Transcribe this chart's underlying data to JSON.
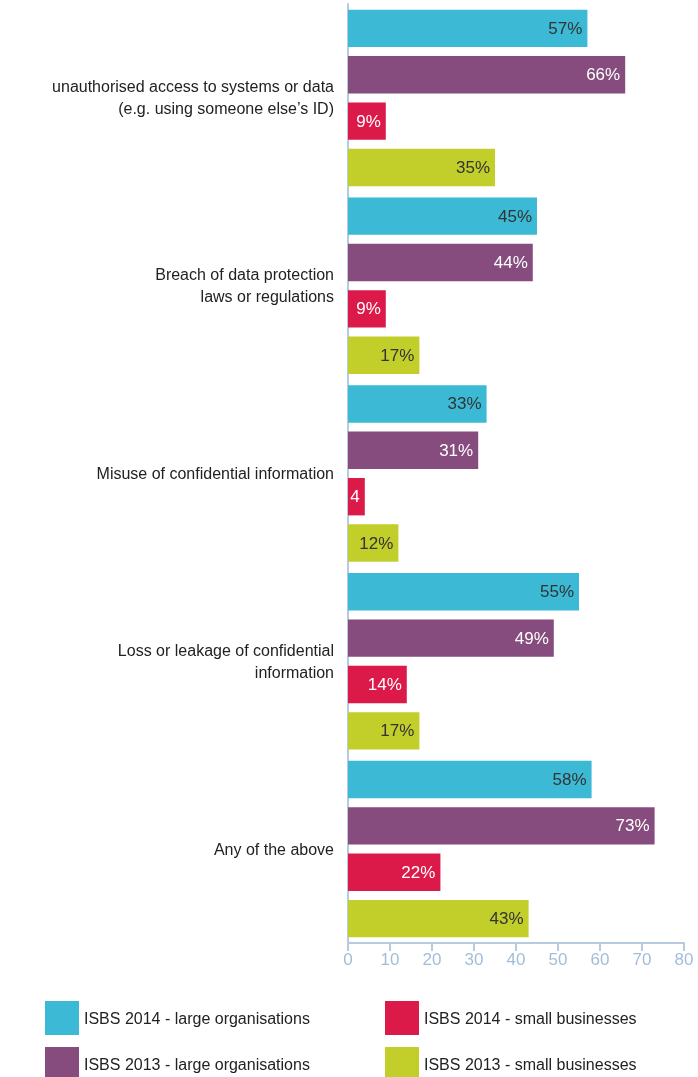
{
  "chart_data": {
    "type": "bar",
    "orientation": "horizontal",
    "categories": [
      "unauthorised access to systems or data\n(e.g. using someone else’s ID)",
      "Breach of data protection\nlaws or regulations",
      "Misuse of confidential information",
      "Loss or leakage of confidential\ninformation",
      "Any of the above"
    ],
    "series": [
      {
        "name": "ISBS 2014 - large organisations",
        "color": "#3bb9d5",
        "values": [
          57,
          45,
          33,
          55,
          58
        ],
        "value_labels": [
          "57%",
          "45%",
          "33%",
          "55%",
          "58%"
        ]
      },
      {
        "name": "ISBS 2013 - large organisations",
        "color": "#874c7e",
        "values": [
          66,
          44,
          31,
          49,
          73
        ],
        "value_labels": [
          "66%",
          "44%",
          "31%",
          "49%",
          "73%"
        ]
      },
      {
        "name": "ISBS 2014 - small businesses",
        "color": "#dc1a4a",
        "values": [
          9,
          9,
          4,
          14,
          22
        ],
        "value_labels": [
          "9%",
          "9%",
          "4",
          "14%",
          "22%"
        ]
      },
      {
        "name": "ISBS 2013 - small businesses",
        "color": "#c2cf2b",
        "values": [
          35,
          17,
          12,
          17,
          43
        ],
        "value_labels": [
          "35%",
          "17%",
          "12%",
          "17%",
          "43%"
        ]
      }
    ],
    "xlim": [
      0,
      80
    ],
    "xticks": [
      0,
      10,
      20,
      30,
      40,
      50,
      60,
      70,
      80
    ],
    "grid": false,
    "legend": "bottom"
  }
}
